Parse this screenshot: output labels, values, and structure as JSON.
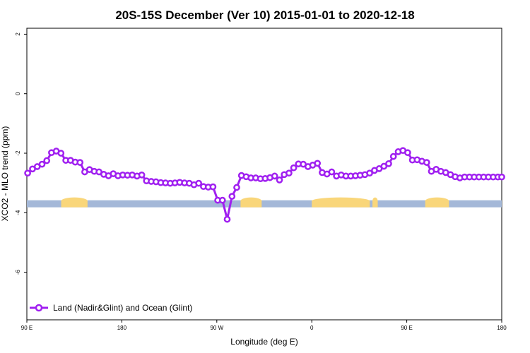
{
  "chart_data": {
    "type": "line",
    "title": "20S-15S December (Ver 10)   2015-01-01 to 2020-12-18",
    "xlabel": "Longitude (deg E)",
    "ylabel": "XCO2 - MLO trend (ppm)",
    "xlim": [
      90,
      450
    ],
    "ylim": [
      -7.6,
      2.2
    ],
    "x_ticks": [
      {
        "value": 90,
        "label": "90 E"
      },
      {
        "value": 162,
        "label": "180"
      },
      {
        "value": 234,
        "label": "90 W"
      },
      {
        "value": 306,
        "label": "0"
      },
      {
        "value": 378,
        "label": "90 E"
      },
      {
        "value": 450,
        "label": "180"
      }
    ],
    "y_ticks": [
      {
        "value": 2,
        "label": "2"
      },
      {
        "value": 0,
        "label": "0"
      },
      {
        "value": -2,
        "label": "-2"
      },
      {
        "value": -4,
        "label": "-4"
      },
      {
        "value": -6,
        "label": "-6"
      }
    ],
    "grid": false,
    "legend": {
      "position": "bottom-left"
    },
    "colors": {
      "series": "#a020f0",
      "ocean": "#a4b8d8",
      "land": "#f9d67a"
    },
    "series": [
      {
        "name": "Land (Nadir&Glint) and Ocean (Glint)",
        "x": [
          90.6,
          94.3,
          97.9,
          101.5,
          105.1,
          108.7,
          112.3,
          115.9,
          119.5,
          123.1,
          126.7,
          130.3,
          133.9,
          137.5,
          141.1,
          144.7,
          148.3,
          151.9,
          155.5,
          159.1,
          162.7,
          166.3,
          169.9,
          173.5,
          177.1,
          180.7,
          184.3,
          187.9,
          191.5,
          195.1,
          198.7,
          202.3,
          205.9,
          209.5,
          213.1,
          216.7,
          220.3,
          223.9,
          227.5,
          231.1,
          234.7,
          238.3,
          241.9,
          245.5,
          249.1,
          252.7,
          256.3,
          259.9,
          263.5,
          267.1,
          270.7,
          274.3,
          277.9,
          281.5,
          285.1,
          288.7,
          292.3,
          295.9,
          299.5,
          303.1,
          306.7,
          310.3,
          313.9,
          317.5,
          321.1,
          324.7,
          328.3,
          331.9,
          335.5,
          339.1,
          342.7,
          346.3,
          349.9,
          353.5,
          357.1,
          360.7,
          364.3,
          367.9,
          371.5,
          375.1,
          378.7,
          382.3,
          385.9,
          389.5,
          393.1,
          396.7,
          400.3,
          403.9,
          407.5,
          411.1,
          414.7,
          418.3,
          421.9,
          425.5,
          429.1,
          432.7,
          436.3,
          439.9,
          443.5,
          447.1,
          450
        ],
        "y": [
          -2.67,
          -2.53,
          -2.45,
          -2.37,
          -2.25,
          -1.98,
          -1.93,
          -2.0,
          -2.24,
          -2.24,
          -2.3,
          -2.31,
          -2.63,
          -2.55,
          -2.61,
          -2.63,
          -2.71,
          -2.76,
          -2.69,
          -2.76,
          -2.73,
          -2.74,
          -2.73,
          -2.77,
          -2.73,
          -2.93,
          -2.95,
          -2.96,
          -2.99,
          -3.0,
          -3.01,
          -3.0,
          -2.98,
          -3.0,
          -3.01,
          -3.06,
          -3.01,
          -3.12,
          -3.14,
          -3.13,
          -3.58,
          -3.58,
          -4.22,
          -3.45,
          -3.15,
          -2.75,
          -2.79,
          -2.83,
          -2.83,
          -2.86,
          -2.85,
          -2.82,
          -2.77,
          -2.9,
          -2.72,
          -2.67,
          -2.49,
          -2.36,
          -2.37,
          -2.45,
          -2.4,
          -2.34,
          -2.65,
          -2.7,
          -2.63,
          -2.77,
          -2.73,
          -2.77,
          -2.77,
          -2.76,
          -2.74,
          -2.72,
          -2.67,
          -2.58,
          -2.52,
          -2.44,
          -2.35,
          -2.11,
          -1.95,
          -1.91,
          -1.98,
          -2.23,
          -2.22,
          -2.27,
          -2.31,
          -2.61,
          -2.54,
          -2.61,
          -2.65,
          -2.72,
          -2.79,
          -2.83,
          -2.8,
          -2.8,
          -2.8,
          -2.8,
          -2.8,
          -2.8,
          -2.8,
          -2.8,
          -2.8
        ]
      }
    ],
    "surface_strip": {
      "y_center": -3.7,
      "ocean_color": "#a4b8d8",
      "land_color": "#f9d67a",
      "land_ranges": [
        [
          116,
          136
        ],
        [
          252,
          268
        ],
        [
          306,
          350
        ],
        [
          352,
          356
        ],
        [
          392,
          410
        ]
      ]
    }
  }
}
